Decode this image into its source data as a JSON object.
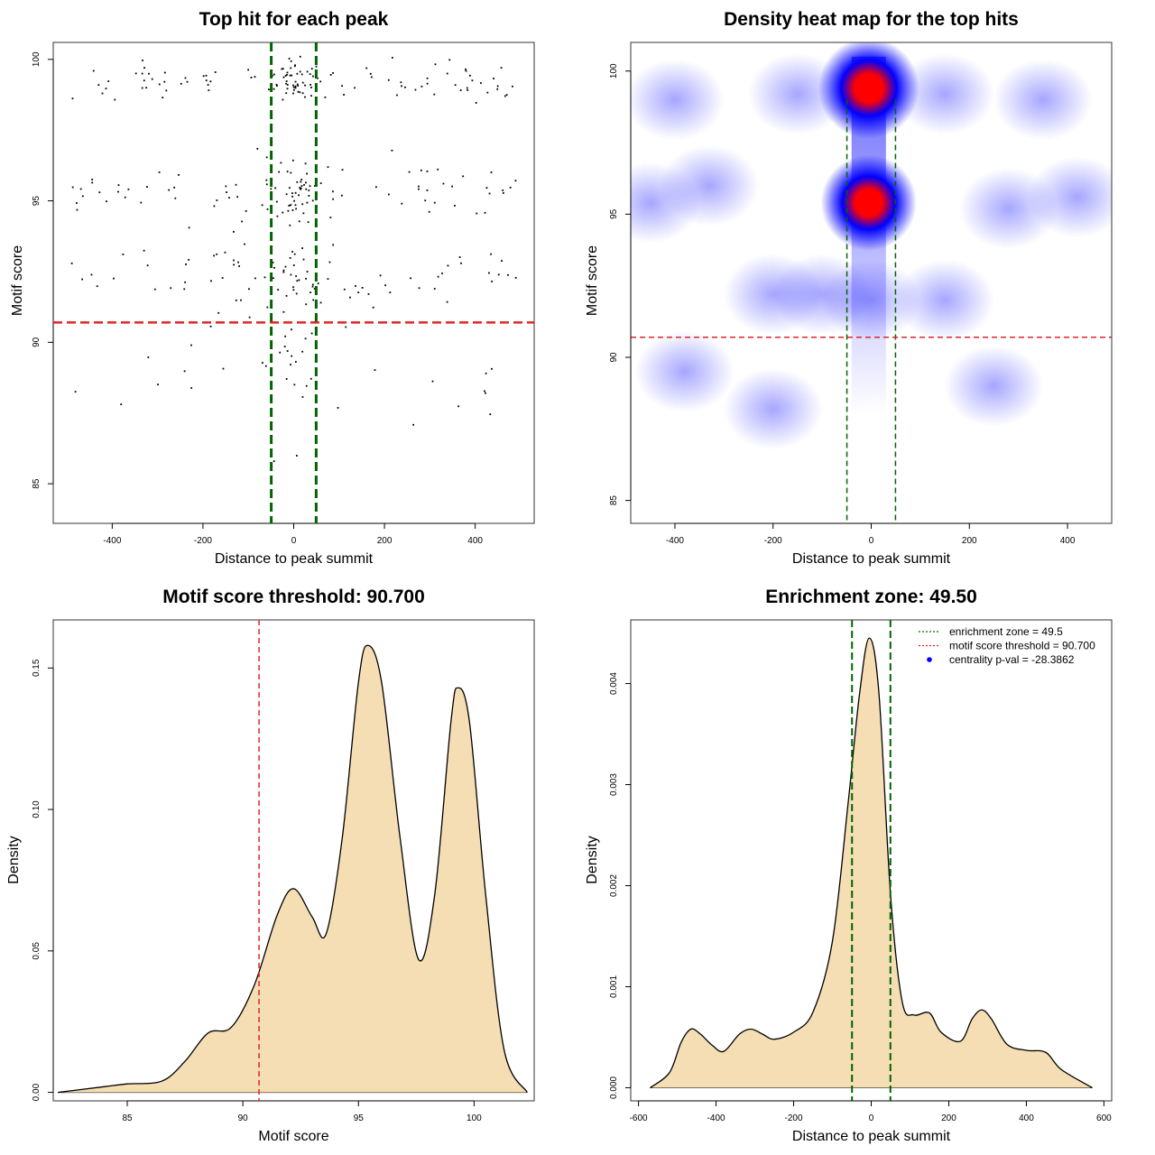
{
  "colors": {
    "green": "#006400",
    "red": "#dc2828",
    "fill": "#f5deb3",
    "heat_low": "#ffffff",
    "heat_mid": "#0000ff",
    "heat_high": "#ff0000"
  },
  "chart_data": [
    {
      "type": "scatter",
      "title": "Top hit for each peak",
      "xlabel": "Distance to peak summit",
      "ylabel": "Motif score",
      "xlim": [
        -530,
        530
      ],
      "ylim": [
        83.6,
        100.6
      ],
      "xticks": [
        -400,
        -200,
        0,
        200,
        400
      ],
      "yticks": [
        85,
        90,
        95,
        100
      ],
      "vlines": [
        -49.5,
        49.5
      ],
      "hline": 90.7,
      "clusters": [
        {
          "score": 99.2,
          "count": 130,
          "spread": 0.35
        },
        {
          "score": 95.3,
          "count": 120,
          "spread": 0.6
        },
        {
          "score": 92.3,
          "count": 90,
          "spread": 0.6
        },
        {
          "score": 89.0,
          "count": 35,
          "spread": 0.9
        },
        {
          "score": 86.0,
          "count": 6,
          "spread": 1.0
        }
      ]
    },
    {
      "type": "heatmap",
      "title": "Density heat map for the top hits",
      "xlabel": "Distance to peak summit",
      "ylabel": "Motif score",
      "xlim": [
        -490,
        490
      ],
      "ylim": [
        84.2,
        101.0
      ],
      "xticks": [
        -400,
        -200,
        0,
        200,
        400
      ],
      "yticks": [
        85,
        90,
        95,
        100
      ],
      "vlines": [
        -49.5,
        49.5
      ],
      "hline": 90.7,
      "hotspots": [
        {
          "x": -5,
          "y": 99.4,
          "intensity": 1.0
        },
        {
          "x": -5,
          "y": 95.4,
          "intensity": 0.95
        }
      ]
    },
    {
      "type": "area",
      "title": "Motif score threshold: 90.700",
      "xlabel": "Motif score",
      "ylabel": "Density",
      "xlim": [
        81.8,
        102.6
      ],
      "ylim": [
        -0.003,
        0.167
      ],
      "xticks": [
        85,
        90,
        95,
        100
      ],
      "yticks": [
        0.0,
        0.05,
        0.1,
        0.15
      ],
      "ytick_labels": [
        "0.00",
        "0.05",
        "0.10",
        "0.15"
      ],
      "vline": 90.7,
      "x": [
        82.0,
        84.0,
        85.0,
        86.5,
        87.5,
        88.5,
        89.5,
        90.5,
        91.5,
        92.2,
        93.0,
        93.6,
        94.3,
        95.0,
        95.4,
        96.0,
        96.8,
        97.6,
        98.3,
        99.0,
        99.3,
        99.8,
        100.5,
        101.3,
        102.3
      ],
      "y": [
        0.0,
        0.002,
        0.003,
        0.004,
        0.011,
        0.021,
        0.023,
        0.038,
        0.063,
        0.072,
        0.062,
        0.056,
        0.09,
        0.145,
        0.158,
        0.145,
        0.09,
        0.047,
        0.07,
        0.131,
        0.143,
        0.131,
        0.07,
        0.015,
        0.0
      ]
    },
    {
      "type": "area",
      "title": "Enrichment zone: 49.50",
      "xlabel": "Distance to peak summit",
      "ylabel": "Density",
      "xlim": [
        -620,
        620
      ],
      "ylim": [
        -0.00013,
        0.00463
      ],
      "xticks": [
        -600,
        -400,
        -200,
        0,
        200,
        400,
        600
      ],
      "yticks": [
        0.0,
        0.001,
        0.002,
        0.003,
        0.004
      ],
      "ytick_labels": [
        "0.000",
        "0.001",
        "0.002",
        "0.003",
        "0.004"
      ],
      "vlines": [
        -49.5,
        49.5
      ],
      "x": [
        -570,
        -520,
        -490,
        -465,
        -440,
        -410,
        -380,
        -340,
        -310,
        -280,
        -250,
        -200,
        -150,
        -100,
        -60,
        -30,
        -5,
        20,
        50,
        80,
        110,
        150,
        180,
        230,
        260,
        285,
        310,
        350,
        400,
        450,
        490,
        570
      ],
      "y": [
        0.0,
        0.00015,
        0.00045,
        0.00058,
        0.00053,
        0.00042,
        0.00036,
        0.00053,
        0.00058,
        0.00053,
        0.00048,
        0.00055,
        0.00075,
        0.00145,
        0.0028,
        0.0039,
        0.00445,
        0.0039,
        0.0019,
        0.00085,
        0.00072,
        0.00074,
        0.00055,
        0.00046,
        0.00068,
        0.00077,
        0.00068,
        0.00043,
        0.00037,
        0.00035,
        0.00018,
        0.0
      ],
      "legend": {
        "position": "top-right",
        "entries": [
          {
            "label": "enrichment zone = 49.5",
            "color": "#006400",
            "style": "dotted-line"
          },
          {
            "label": "motif score threshold = 90.700",
            "color": "#dc2828",
            "style": "dotted-line"
          },
          {
            "label": "centrality p-val = -28.3862",
            "color": "#0000ff",
            "style": "point"
          }
        ]
      }
    }
  ]
}
